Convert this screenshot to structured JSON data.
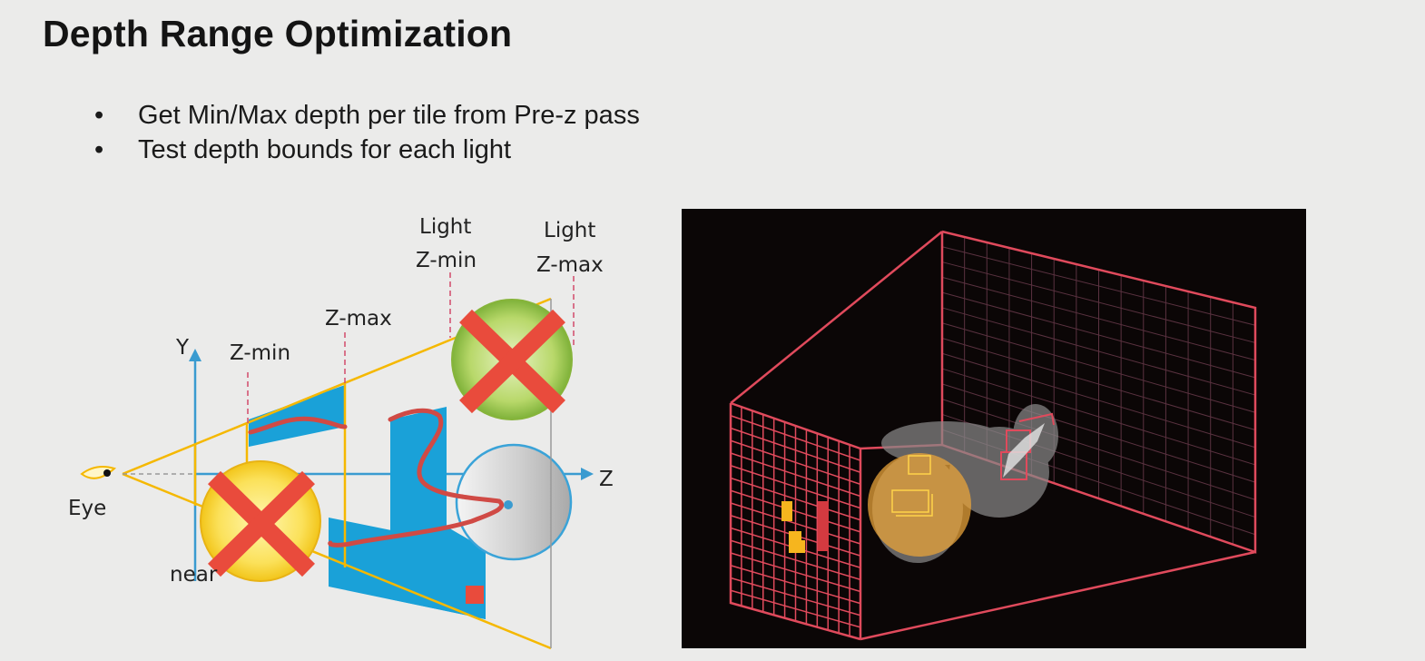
{
  "slide": {
    "title": "Depth Range Optimization",
    "bullets": [
      "Get Min/Max depth per tile from Pre-z pass",
      "Test depth bounds for each light"
    ]
  },
  "left_diagram": {
    "labels": {
      "light_zmin": [
        "Light",
        "Z-min"
      ],
      "light_zmax": [
        "Light",
        "Z-max"
      ],
      "zmax": "Z-max",
      "zmin": "Z-min",
      "y_axis": "Y",
      "z_axis": "Z",
      "eye": "Eye",
      "near": "near"
    }
  },
  "colors": {
    "frustum_line": "#f5b800",
    "depth_fill": "#1aa1d8",
    "curve": "#d04a45",
    "cross": "#e94b3c",
    "axis": "#3a9bd0",
    "grid_line": "#e04a5c",
    "panel_bg": "#0b0606",
    "light_sphere": "#e8a33a"
  }
}
